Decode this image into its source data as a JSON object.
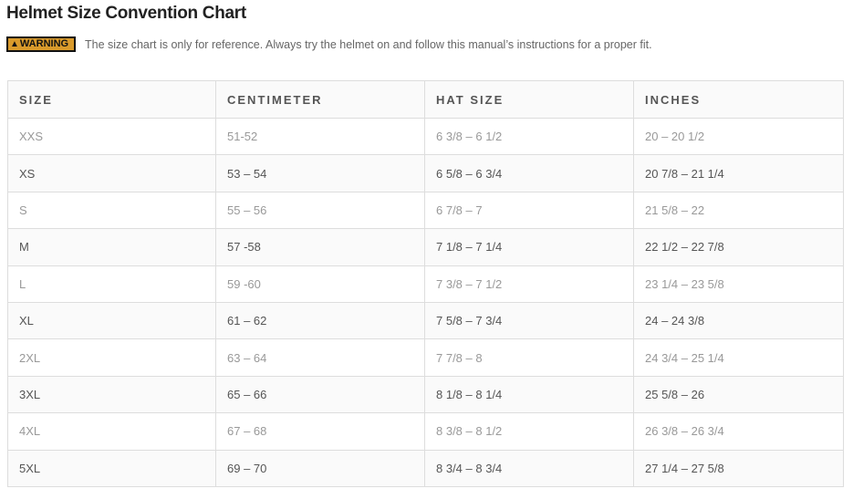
{
  "title": "Helmet Size Convention Chart",
  "warning": {
    "badge": "WARNING",
    "badge_icon": "warning-triangle-icon",
    "badge_color": "#d99a2b",
    "text": "The size chart is only for reference. Always try the helmet on and follow this manual’s instructions for a proper fit."
  },
  "table": {
    "headers": [
      "SIZE",
      "CENTIMETER",
      "HAT SIZE",
      "INCHES"
    ],
    "rows": [
      [
        "XXS",
        "51-52",
        "6 3/8 – 6 1/2",
        "20 – 20 1/2"
      ],
      [
        "XS",
        "53 – 54",
        "6 5/8 – 6 3/4",
        "20 7/8 – 21 1/4"
      ],
      [
        "S",
        "55 – 56",
        "6 7/8 – 7",
        "21 5/8 – 22"
      ],
      [
        "M",
        "57 -58",
        "7 1/8 – 7 1/4",
        "22 1/2 – 22 7/8"
      ],
      [
        "L",
        "59 -60",
        "7 3/8 – 7 1/2",
        "23 1/4 – 23 5/8"
      ],
      [
        "XL",
        "61 – 62",
        "7 5/8 – 7 3/4",
        "24 – 24 3/8"
      ],
      [
        "2XL",
        "63 – 64",
        "7 7/8 – 8",
        "24 3/4 – 25 1/4"
      ],
      [
        "3XL",
        "65 – 66",
        "8 1/8 – 8 1/4",
        "25 5/8 – 26"
      ],
      [
        "4XL",
        "67 – 68",
        "8 3/8 – 8 1/2",
        "26 3/8 – 26 3/4"
      ],
      [
        "5XL",
        "69 – 70",
        "8 3/4 – 8 3/4",
        "27 1/4 – 27 5/8"
      ]
    ]
  }
}
